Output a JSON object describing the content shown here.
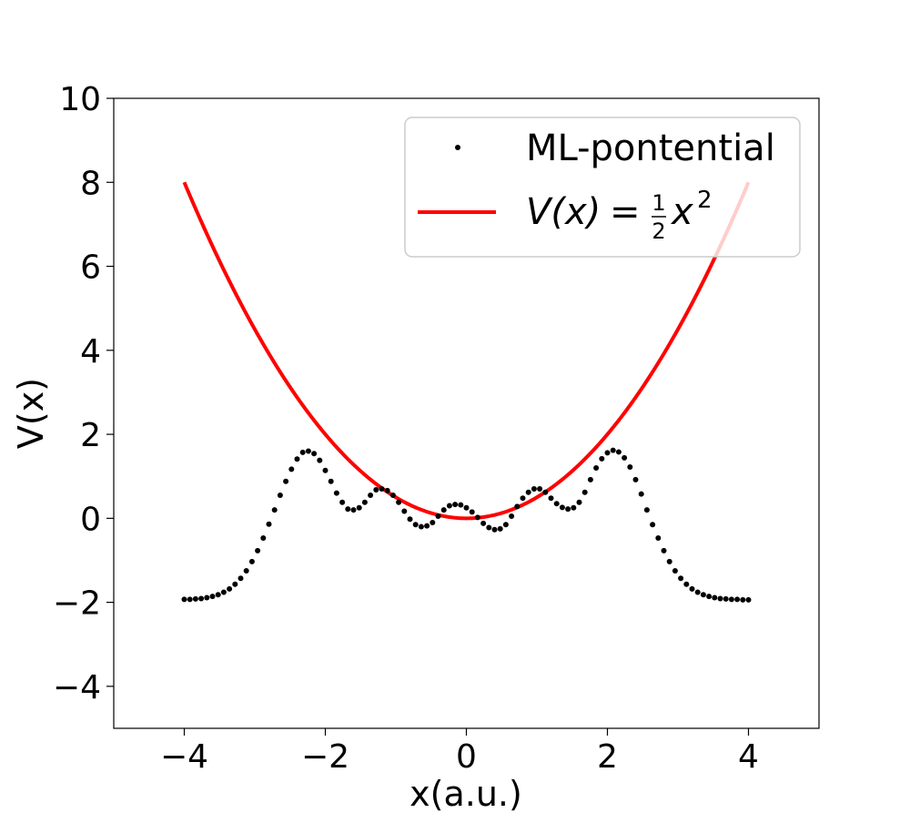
{
  "chart_data": {
    "type": "scatter",
    "xlabel": "x(a.u.)",
    "ylabel": "V(x)",
    "xlim": [
      -5,
      5
    ],
    "ylim": [
      -5,
      10
    ],
    "x_ticks": [
      -4,
      -2,
      0,
      2,
      4
    ],
    "y_ticks": [
      -4,
      -2,
      0,
      2,
      4,
      6,
      8,
      10
    ],
    "x_tick_labels": [
      "−4",
      "−2",
      "0",
      "2",
      "4"
    ],
    "y_tick_labels": [
      "−4",
      "−2",
      "0",
      "2",
      "4",
      "6",
      "8",
      "10"
    ],
    "grid": false,
    "legend_placement": "upper right",
    "series": [
      {
        "name": "ML-pontential",
        "kind": "scatter",
        "color": "#000000",
        "x": [
          -4.0,
          -3.92,
          -3.84,
          -3.76,
          -3.68,
          -3.6,
          -3.52,
          -3.44,
          -3.36,
          -3.28,
          -3.2,
          -3.12,
          -3.04,
          -2.96,
          -2.88,
          -2.8,
          -2.72,
          -2.64,
          -2.56,
          -2.48,
          -2.4,
          -2.32,
          -2.24,
          -2.16,
          -2.08,
          -2.0,
          -1.92,
          -1.84,
          -1.76,
          -1.68,
          -1.6,
          -1.52,
          -1.44,
          -1.36,
          -1.28,
          -1.2,
          -1.12,
          -1.04,
          -0.96,
          -0.88,
          -0.8,
          -0.72,
          -0.64,
          -0.56,
          -0.48,
          -0.4,
          -0.32,
          -0.24,
          -0.16,
          -0.08,
          0.0,
          0.08,
          0.16,
          0.24,
          0.32,
          0.4,
          0.48,
          0.56,
          0.64,
          0.72,
          0.8,
          0.88,
          0.96,
          1.04,
          1.12,
          1.2,
          1.28,
          1.36,
          1.44,
          1.52,
          1.6,
          1.68,
          1.76,
          1.84,
          1.92,
          2.0,
          2.08,
          2.16,
          2.24,
          2.32,
          2.4,
          2.48,
          2.56,
          2.64,
          2.72,
          2.8,
          2.88,
          2.96,
          3.04,
          3.12,
          3.2,
          3.28,
          3.36,
          3.44,
          3.52,
          3.6,
          3.68,
          3.76,
          3.84,
          3.92,
          4.0
        ],
        "y": [
          -1.93,
          -1.93,
          -1.92,
          -1.91,
          -1.89,
          -1.86,
          -1.82,
          -1.76,
          -1.68,
          -1.57,
          -1.43,
          -1.25,
          -1.03,
          -0.77,
          -0.47,
          -0.14,
          0.2,
          0.55,
          0.88,
          1.17,
          1.41,
          1.57,
          1.6,
          1.54,
          1.38,
          1.14,
          0.88,
          0.6,
          0.38,
          0.22,
          0.2,
          0.25,
          0.38,
          0.55,
          0.68,
          0.7,
          0.66,
          0.55,
          0.38,
          0.17,
          -0.02,
          -0.15,
          -0.2,
          -0.18,
          -0.1,
          0.05,
          0.2,
          0.3,
          0.33,
          0.32,
          0.25,
          0.15,
          0.02,
          -0.12,
          -0.22,
          -0.27,
          -0.25,
          -0.15,
          0.05,
          0.28,
          0.48,
          0.62,
          0.7,
          0.7,
          0.62,
          0.48,
          0.35,
          0.26,
          0.22,
          0.25,
          0.38,
          0.62,
          0.92,
          1.2,
          1.42,
          1.56,
          1.62,
          1.58,
          1.44,
          1.22,
          0.92,
          0.58,
          0.2,
          -0.15,
          -0.47,
          -0.77,
          -1.03,
          -1.25,
          -1.43,
          -1.57,
          -1.68,
          -1.76,
          -1.82,
          -1.86,
          -1.89,
          -1.91,
          -1.92,
          -1.93,
          -1.93,
          -1.94,
          -1.94
        ]
      },
      {
        "name": "V(x) = ½ x²",
        "kind": "line",
        "color": "#ff0000",
        "function": "0.5*x^2",
        "x_range": [
          -4,
          4
        ]
      }
    ]
  },
  "legend": {
    "items": [
      {
        "label": "ML-pontential"
      },
      {
        "label_prefix": "V(x)",
        "label_eq": "=",
        "label_frac_num": "1",
        "label_frac_den": "2",
        "label_var": "x",
        "label_exp": "2"
      }
    ]
  }
}
